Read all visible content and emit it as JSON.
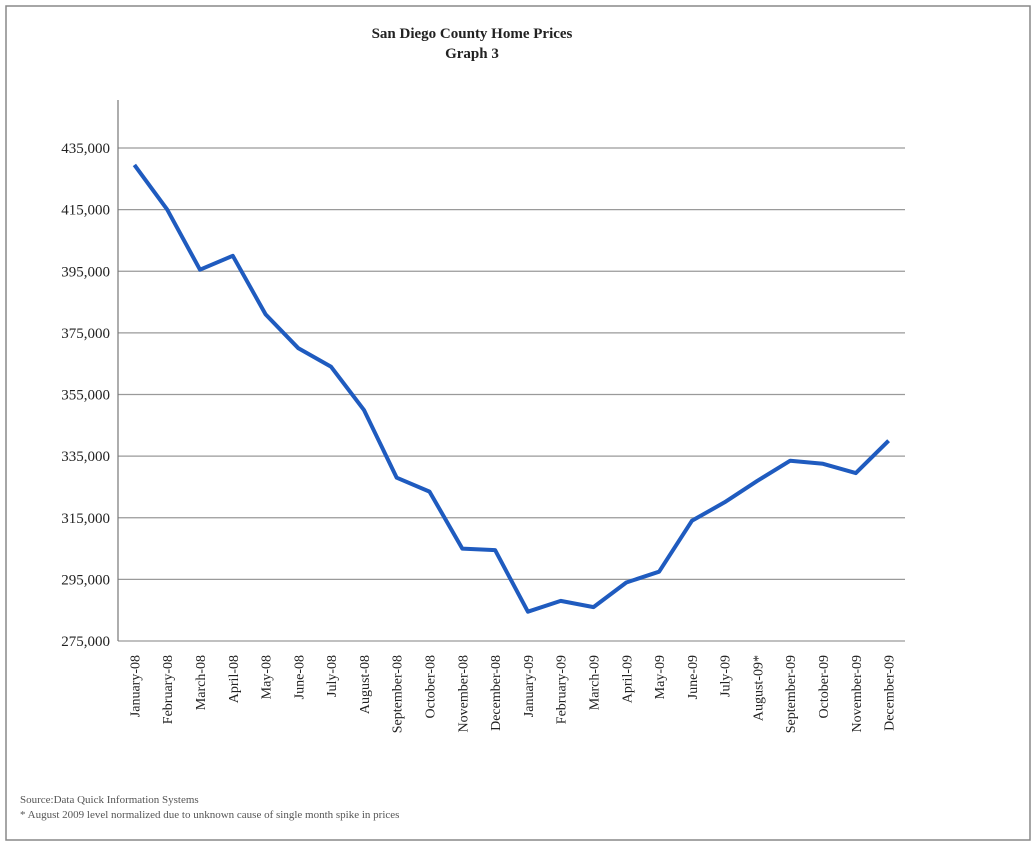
{
  "chart_data": {
    "type": "line",
    "title": "San Diego County Home Prices",
    "subtitle": "Graph 3",
    "source": "Source:Data Quick Information Systems",
    "footnote": "* August 2009 level normalized due to unknown cause of single month spike in prices",
    "categories": [
      "January-08",
      "February-08",
      "March-08",
      "April-08",
      "May-08",
      "June-08",
      "July-08",
      "August-08",
      "September-08",
      "October-08",
      "November-08",
      "December-08",
      "January-09",
      "February-09",
      "March-09",
      "April-09",
      "May-09",
      "June-09",
      "July-09",
      "August-09*",
      "September-09",
      "October-09",
      "November-09",
      "December-09"
    ],
    "series": [
      {
        "color": "#1f5bbf",
        "values": [
          429500,
          415000,
          395500,
          400000,
          381000,
          370000,
          364000,
          350000,
          328000,
          323500,
          305000,
          304500,
          284500,
          288000,
          286000,
          294000,
          297500,
          314000,
          320000,
          327000,
          333500,
          332500,
          329500,
          340000
        ]
      }
    ],
    "ylim": [
      275000,
      435000
    ],
    "yticks": [
      {
        "value": 275000,
        "label": "275,000"
      },
      {
        "value": 295000,
        "label": "295,000"
      },
      {
        "value": 315000,
        "label": "315,000"
      },
      {
        "value": 335000,
        "label": "335,000"
      },
      {
        "value": 355000,
        "label": "355,000"
      },
      {
        "value": 375000,
        "label": "375,000"
      },
      {
        "value": 395000,
        "label": "395,000"
      },
      {
        "value": 415000,
        "label": "415,000"
      },
      {
        "value": 435000,
        "label": "435,000"
      }
    ],
    "grid": true
  }
}
